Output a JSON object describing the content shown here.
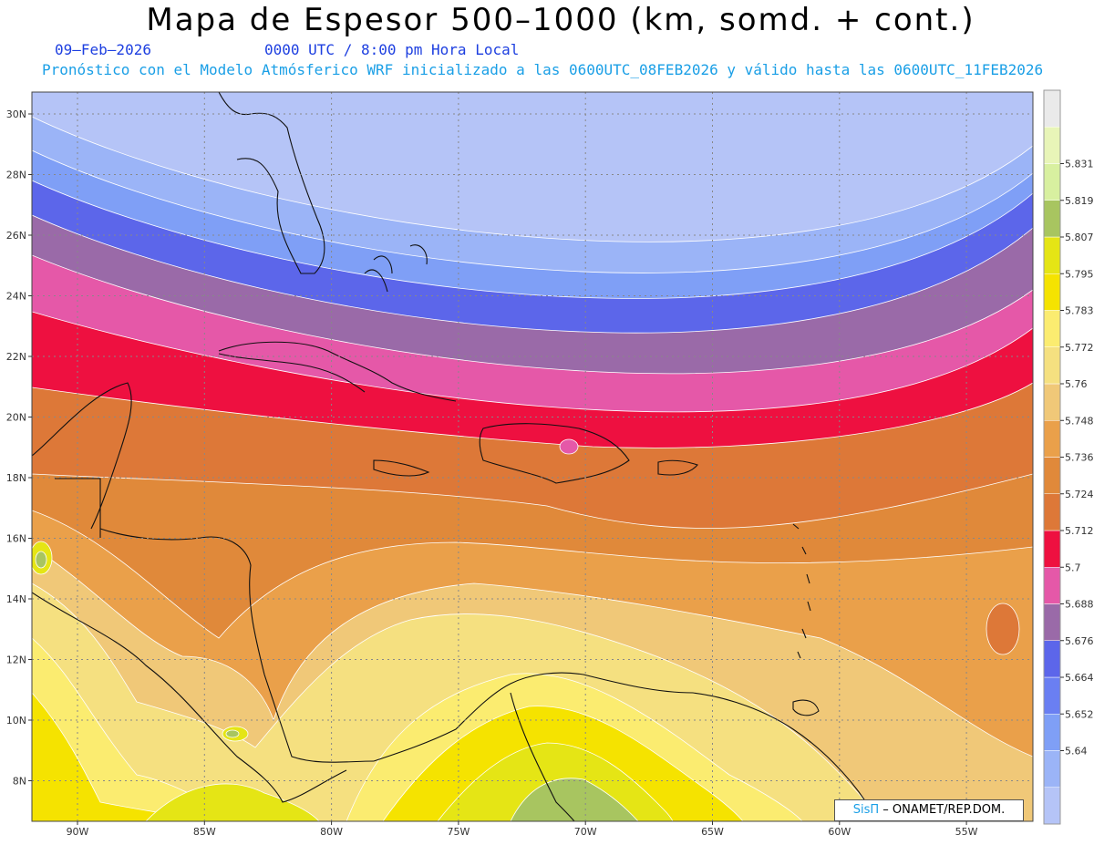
{
  "header": {
    "title": "Mapa de Espesor 500–1000 (km, somd. + cont.)",
    "date": "09–Feb–2026",
    "time": "0000 UTC / 8:00 pm Hora Local",
    "description": "Pronóstico con el Modelo Atmósferico WRF inicializado a las 0600UTC_08FEB2026 y válido hasta las  0600UTC_11FEB2026"
  },
  "axes": {
    "lat_labels": [
      "30N",
      "28N",
      "26N",
      "24N",
      "22N",
      "20N",
      "18N",
      "16N",
      "14N",
      "12N",
      "10N",
      "8N"
    ],
    "lon_labels": [
      "90W",
      "85W",
      "80W",
      "75W",
      "70W",
      "65W",
      "60W",
      "55W"
    ]
  },
  "colorbar": {
    "levels": [
      "5.64",
      "5.652",
      "5.664",
      "5.676",
      "5.688",
      "5.7",
      "5.712",
      "5.724",
      "5.736",
      "5.748",
      "5.76",
      "5.772",
      "5.783",
      "5.795",
      "5.807",
      "5.819",
      "5.831"
    ],
    "colors": [
      "#b5c4f7",
      "#9bb4f7",
      "#7f9ff6",
      "#6a7ff2",
      "#5c66ea",
      "#9a6aa8",
      "#e558a8",
      "#ee1040",
      "#dd7838",
      "#e0893a",
      "#eaa04a",
      "#f0c878",
      "#f5e080",
      "#fbec70",
      "#f5e300",
      "#e5e515",
      "#a8c560",
      "#d8f0a0",
      "#e8f5b8",
      "#eaeaea"
    ]
  },
  "credit": {
    "brand": "SisΠ",
    "text": "– ONAMET/REP.DOM."
  }
}
